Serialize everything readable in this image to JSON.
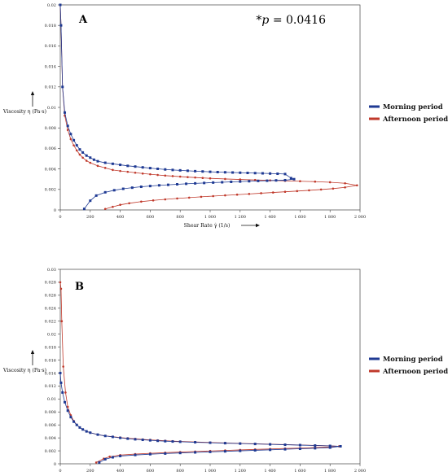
{
  "chart_data": [
    {
      "type": "line",
      "panel_label": "A",
      "annotation_prefix": "*",
      "annotation_var": "p",
      "annotation_value": " = 0.0416",
      "xlabel": "Shear Rate γ̇ (1/s)",
      "ylabel": "Viscosity η (Pa·s)",
      "xlim": [
        0,
        2000
      ],
      "ylim": [
        0,
        0.02
      ],
      "xticks": [
        "0",
        "200",
        "400",
        "600",
        "800",
        "1 000",
        "1 200",
        "1 400",
        "1 600",
        "1 800",
        "2 000"
      ],
      "yticks": [
        "0",
        "0.002",
        "0.004",
        "0.006",
        "0.008",
        "0.01",
        "0.012",
        "0.014",
        "0.016",
        "0.018",
        "0.02"
      ],
      "legend": [
        "Morning period",
        "Afternoon period"
      ],
      "series": [
        {
          "name": "Morning period",
          "color": "#1f3a93",
          "x": [
            0,
            5,
            15,
            30,
            50,
            70,
            90,
            110,
            130,
            150,
            175,
            200,
            225,
            250,
            300,
            350,
            400,
            450,
            500,
            550,
            600,
            650,
            700,
            750,
            800,
            850,
            900,
            950,
            1000,
            1050,
            1100,
            1150,
            1200,
            1250,
            1300,
            1350,
            1400,
            1450,
            1500,
            1540,
            1560,
            1500,
            1440,
            1380,
            1320,
            1260,
            1200,
            1140,
            1080,
            1020,
            960,
            900,
            840,
            780,
            720,
            660,
            600,
            540,
            480,
            420,
            360,
            300,
            240,
            200,
            160
          ],
          "y": [
            0.02,
            0.018,
            0.012,
            0.0095,
            0.0082,
            0.0074,
            0.0068,
            0.0063,
            0.0059,
            0.0056,
            0.0053,
            0.0051,
            0.0049,
            0.00475,
            0.0046,
            0.0045,
            0.0044,
            0.0043,
            0.00423,
            0.00415,
            0.00408,
            0.00401,
            0.00395,
            0.0039,
            0.00386,
            0.00382,
            0.00378,
            0.00375,
            0.00372,
            0.00369,
            0.00367,
            0.00365,
            0.00363,
            0.00361,
            0.00359,
            0.00357,
            0.00355,
            0.00353,
            0.0035,
            0.0031,
            0.003,
            0.0029,
            0.00288,
            0.00285,
            0.00283,
            0.0028,
            0.00277,
            0.00274,
            0.0027,
            0.00267,
            0.00263,
            0.00259,
            0.00255,
            0.0025,
            0.00245,
            0.0024,
            0.00233,
            0.00226,
            0.00217,
            0.00206,
            0.00192,
            0.00172,
            0.0014,
            0.0009,
            0.0001
          ]
        },
        {
          "name": "Afternoon period",
          "color": "#c0392b",
          "x": [
            0,
            5,
            15,
            30,
            50,
            70,
            90,
            110,
            130,
            150,
            175,
            200,
            250,
            300,
            350,
            400,
            450,
            500,
            550,
            600,
            650,
            700,
            750,
            800,
            850,
            900,
            950,
            1000,
            1100,
            1200,
            1300,
            1400,
            1500,
            1600,
            1700,
            1800,
            1900,
            1980,
            1900,
            1820,
            1740,
            1660,
            1580,
            1500,
            1420,
            1340,
            1260,
            1180,
            1100,
            1020,
            940,
            860,
            780,
            700,
            620,
            540,
            460,
            400,
            350,
            300
          ],
          "y": [
            0.02,
            0.018,
            0.012,
            0.0092,
            0.0078,
            0.0069,
            0.0063,
            0.0058,
            0.0054,
            0.0051,
            0.0048,
            0.0046,
            0.0043,
            0.0041,
            0.0039,
            0.0038,
            0.00372,
            0.00363,
            0.00355,
            0.00348,
            0.00341,
            0.00335,
            0.0033,
            0.00325,
            0.0032,
            0.00316,
            0.00312,
            0.00308,
            0.00302,
            0.00297,
            0.00292,
            0.00288,
            0.00284,
            0.0028,
            0.00276,
            0.0027,
            0.0026,
            0.0024,
            0.0022,
            0.00208,
            0.00199,
            0.00191,
            0.00184,
            0.00177,
            0.0017,
            0.00163,
            0.00156,
            0.00149,
            0.00142,
            0.00135,
            0.00128,
            0.0012,
            0.00112,
            0.00103,
            0.00093,
            0.00081,
            0.00065,
            0.0005,
            0.0003,
            0.0001
          ]
        }
      ]
    },
    {
      "type": "line",
      "panel_label": "B",
      "xlabel": "Shear Rate γ̇ (1/s)",
      "ylabel": "Viscosity η (Pa·s)",
      "xlim": [
        0,
        2000
      ],
      "ylim": [
        0,
        0.03
      ],
      "xticks": [
        "0",
        "200",
        "400",
        "600",
        "800",
        "1 000",
        "1 200",
        "1 400",
        "1 600",
        "1 800",
        "2 000"
      ],
      "yticks": [
        "0",
        "0.002",
        "0.004",
        "0.006",
        "0.008",
        "0.01",
        "0.012",
        "0.014",
        "0.016",
        "0.018",
        "0.02",
        "0.022",
        "0.024",
        "0.026",
        "0.028",
        "0.03"
      ],
      "legend": [
        "Morning period",
        "Afternoon period"
      ],
      "series": [
        {
          "name": "Morning period",
          "color": "#1f3a93",
          "x": [
            0,
            5,
            15,
            30,
            50,
            70,
            90,
            110,
            130,
            150,
            175,
            200,
            250,
            300,
            350,
            400,
            450,
            500,
            550,
            600,
            650,
            700,
            750,
            800,
            900,
            1000,
            1100,
            1200,
            1300,
            1400,
            1500,
            1600,
            1700,
            1800,
            1870,
            1800,
            1700,
            1600,
            1500,
            1400,
            1300,
            1200,
            1100,
            1000,
            900,
            800,
            700,
            600,
            500,
            400,
            350,
            300,
            260
          ],
          "y": [
            0.014,
            0.0125,
            0.011,
            0.0095,
            0.0082,
            0.0072,
            0.0065,
            0.006,
            0.0056,
            0.0053,
            0.005,
            0.0048,
            0.0045,
            0.0043,
            0.00415,
            0.004,
            0.00388,
            0.00378,
            0.0037,
            0.00362,
            0.00355,
            0.00349,
            0.00344,
            0.0034,
            0.00332,
            0.00325,
            0.00318,
            0.00312,
            0.00306,
            0.003,
            0.00294,
            0.00288,
            0.00282,
            0.00276,
            0.0027,
            0.0025,
            0.0024,
            0.00232,
            0.00224,
            0.00216,
            0.00208,
            0.002,
            0.00192,
            0.00184,
            0.00176,
            0.00167,
            0.00158,
            0.00148,
            0.00136,
            0.0012,
            0.001,
            0.0007,
            0.0002
          ]
        },
        {
          "name": "Afternoon period",
          "color": "#c0392b",
          "x": [
            0,
            5,
            10,
            20,
            35,
            50,
            70,
            90,
            110,
            130,
            150,
            175,
            200,
            250,
            300,
            350,
            400,
            450,
            500,
            550,
            600,
            650,
            700,
            750,
            800,
            900,
            1000,
            1100,
            1200,
            1300,
            1400,
            1500,
            1600,
            1700,
            1800,
            1860,
            1800,
            1700,
            1600,
            1500,
            1400,
            1300,
            1200,
            1100,
            1000,
            900,
            800,
            700,
            600,
            500,
            400,
            330,
            290,
            240
          ],
          "y": [
            0.028,
            0.027,
            0.022,
            0.015,
            0.011,
            0.0088,
            0.0075,
            0.0066,
            0.006,
            0.0056,
            0.0053,
            0.005,
            0.0048,
            0.0045,
            0.0043,
            0.00418,
            0.00405,
            0.00394,
            0.00385,
            0.00376,
            0.00369,
            0.00362,
            0.00356,
            0.0035,
            0.00345,
            0.00337,
            0.00329,
            0.00322,
            0.00315,
            0.00308,
            0.00302,
            0.00296,
            0.0029,
            0.00284,
            0.00278,
            0.0027,
            0.0026,
            0.0025,
            0.00243,
            0.00236,
            0.00229,
            0.00222,
            0.00214,
            0.00206,
            0.00198,
            0.0019,
            0.00181,
            0.00172,
            0.00162,
            0.0015,
            0.00135,
            0.0011,
            0.0008,
            0.0002
          ]
        }
      ]
    }
  ]
}
